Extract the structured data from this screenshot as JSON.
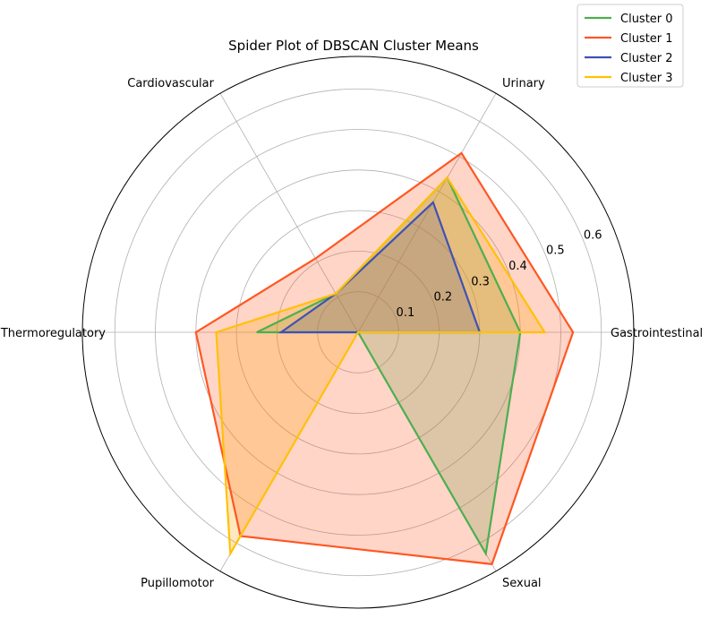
{
  "chart_data": {
    "type": "radar",
    "title": "Spider Plot of DBSCAN Cluster Means",
    "categories": [
      "Gastrointestinal",
      "Urinary",
      "Cardiovascular",
      "Thermoregulatory",
      "Pupillomotor",
      "Sexual"
    ],
    "rmax": 0.68,
    "rticks": [
      0.1,
      0.2,
      0.3,
      0.4,
      0.5,
      0.6
    ],
    "rtick_labels": [
      "0.1",
      "0.2",
      "0.3",
      "0.4",
      "0.5",
      "0.6"
    ],
    "grid": true,
    "legend_position": "top-right",
    "series": [
      {
        "name": "Cluster 0",
        "values": [
          0.4,
          0.44,
          0.11,
          0.25,
          0.0,
          0.63
        ],
        "color": "#4caf50",
        "fill": null
      },
      {
        "name": "Cluster 1",
        "values": [
          0.53,
          0.51,
          0.21,
          0.4,
          0.58,
          0.66
        ],
        "color": "#ff5722",
        "fill": "#ff5722"
      },
      {
        "name": "Cluster 2",
        "values": [
          0.3,
          0.37,
          0.11,
          0.19,
          0.0,
          0.0
        ],
        "color": "#3f51b5",
        "fill": null
      },
      {
        "name": "Cluster 3",
        "values": [
          0.46,
          0.44,
          0.11,
          0.35,
          0.63,
          0.0
        ],
        "color": "#ffc107",
        "fill": "#ffa500"
      }
    ]
  }
}
